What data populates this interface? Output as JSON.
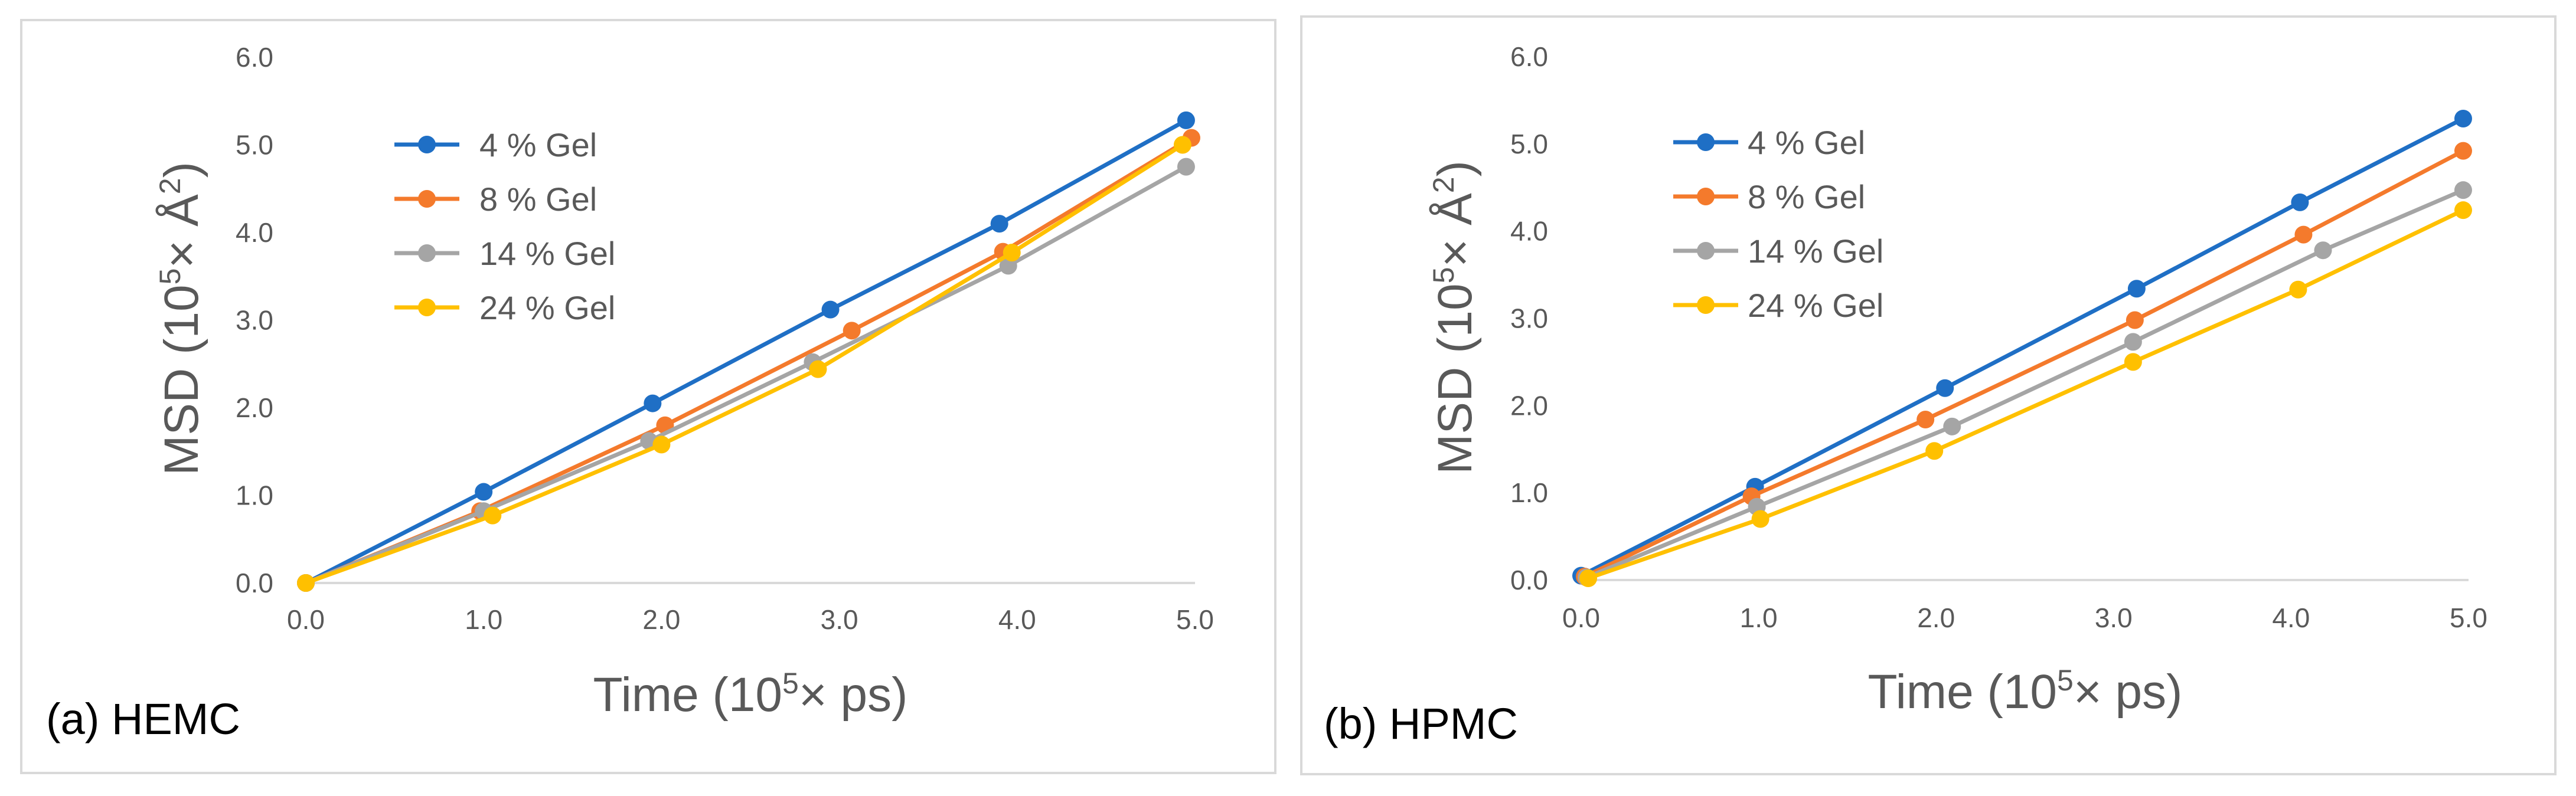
{
  "chart_data": [
    {
      "type": "line",
      "panel_label": "(a) HEMC",
      "xlabel": "Time (10⁵× ps)",
      "xlabel_parts": {
        "pre": "Time (10",
        "sup": "5",
        "post": "× ps)"
      },
      "ylabel": "MSD (10⁵× Å²)",
      "ylabel_parts": {
        "pre": "MSD (10",
        "sup1": "5",
        "mid": "× Å",
        "sup2": "2",
        "post": ")"
      },
      "xlim": [
        0,
        5
      ],
      "ylim": [
        0,
        6
      ],
      "xticks": [
        "0.0",
        "1.0",
        "2.0",
        "3.0",
        "4.0",
        "5.0"
      ],
      "yticks": [
        "0.0",
        "1.0",
        "2.0",
        "3.0",
        "4.0",
        "5.0",
        "6.0"
      ],
      "grid": false,
      "legend_position": "top-left",
      "series": [
        {
          "name": "4 % Gel",
          "color": "#1f6fc5",
          "x": [
            0.0,
            1.0,
            1.95,
            2.95,
            3.9,
            4.95
          ],
          "y": [
            0.0,
            1.04,
            2.05,
            3.12,
            4.1,
            5.28
          ]
        },
        {
          "name": "8 % Gel",
          "color": "#f47a2c",
          "x": [
            0.0,
            0.98,
            2.02,
            3.07,
            3.92,
            4.98
          ],
          "y": [
            0.0,
            0.82,
            1.8,
            2.88,
            3.78,
            5.08
          ]
        },
        {
          "name": "14 % Gel",
          "color": "#a5a5a5",
          "x": [
            0.0,
            1.0,
            1.93,
            2.85,
            3.95,
            4.95
          ],
          "y": [
            0.0,
            0.82,
            1.62,
            2.52,
            3.62,
            4.75
          ]
        },
        {
          "name": "24 % Gel",
          "color": "#ffc000",
          "x": [
            0.0,
            1.05,
            2.0,
            2.88,
            3.97,
            4.93
          ],
          "y": [
            0.0,
            0.77,
            1.58,
            2.44,
            3.77,
            5.0
          ]
        }
      ]
    },
    {
      "type": "line",
      "panel_label": "(b) HPMC",
      "xlabel": "Time (10⁵× ps)",
      "xlabel_parts": {
        "pre": "Time (10",
        "sup": "5",
        "post": "× ps)"
      },
      "ylabel": "MSD (10⁵× Å²)",
      "ylabel_parts": {
        "pre": "MSD (10",
        "sup1": "5",
        "mid": "× Å",
        "sup2": "2",
        "post": ")"
      },
      "xlim": [
        0,
        5
      ],
      "ylim": [
        0,
        6
      ],
      "xticks": [
        "0.0",
        "1.0",
        "2.0",
        "3.0",
        "4.0",
        "5.0"
      ],
      "yticks": [
        "0.0",
        "1.0",
        "2.0",
        "3.0",
        "4.0",
        "5.0",
        "6.0"
      ],
      "grid": false,
      "legend_position": "top-left",
      "series": [
        {
          "name": "4 % Gel",
          "color": "#1f6fc5",
          "x": [
            0.0,
            0.98,
            2.05,
            3.13,
            4.05,
            4.97
          ],
          "y": [
            0.05,
            1.07,
            2.2,
            3.34,
            4.33,
            5.29
          ]
        },
        {
          "name": "8 % Gel",
          "color": "#f47a2c",
          "x": [
            0.02,
            0.96,
            1.94,
            3.12,
            4.07,
            4.97
          ],
          "y": [
            0.04,
            0.96,
            1.84,
            2.98,
            3.96,
            4.92
          ]
        },
        {
          "name": "14 % Gel",
          "color": "#a5a5a5",
          "x": [
            0.03,
            0.99,
            2.09,
            3.11,
            4.18,
            4.97
          ],
          "y": [
            0.03,
            0.84,
            1.76,
            2.73,
            3.78,
            4.47
          ]
        },
        {
          "name": "24 % Gel",
          "color": "#ffc000",
          "x": [
            0.04,
            1.01,
            1.99,
            3.11,
            4.04,
            4.97
          ],
          "y": [
            0.02,
            0.7,
            1.48,
            2.5,
            3.33,
            4.24
          ]
        }
      ]
    }
  ]
}
